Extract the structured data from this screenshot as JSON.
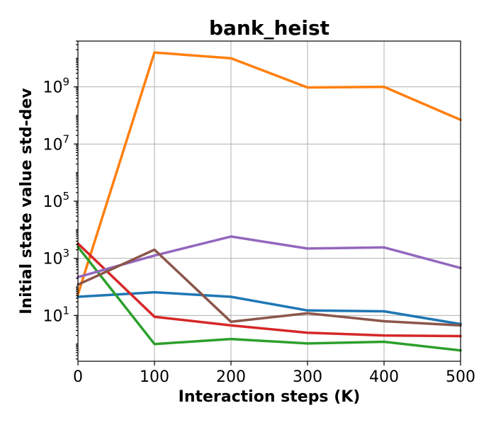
{
  "chart_data": {
    "type": "line",
    "title": "bank_heist",
    "xlabel": "Interaction steps (K)",
    "ylabel": "Initial state value std-dev",
    "x": [
      0,
      100,
      200,
      300,
      400,
      500
    ],
    "xlim": [
      0,
      500
    ],
    "xticks": [
      "0",
      "100",
      "200",
      "300",
      "400",
      "500"
    ],
    "yscale": "log",
    "ylim": [
      0.25,
      40000000000
    ],
    "yticks": [
      {
        "base": "10",
        "exp": "1",
        "value": 10
      },
      {
        "base": "10",
        "exp": "3",
        "value": 1000
      },
      {
        "base": "10",
        "exp": "5",
        "value": 100000
      },
      {
        "base": "10",
        "exp": "7",
        "value": 10000000
      },
      {
        "base": "10",
        "exp": "9",
        "value": 1000000000
      }
    ],
    "grid": true,
    "series": [
      {
        "color": "#1f77b4",
        "values": [
          45,
          65,
          45,
          15,
          14,
          5
        ]
      },
      {
        "color": "#ff7f0e",
        "values": [
          55,
          16000000000,
          10000000000,
          950000000,
          1000000000,
          70000000
        ]
      },
      {
        "color": "#2ca02c",
        "values": [
          2500,
          1,
          1.5,
          1.05,
          1.2,
          0.6
        ]
      },
      {
        "color": "#d62728",
        "values": [
          3300,
          9,
          4.5,
          2.5,
          2,
          1.9
        ]
      },
      {
        "color": "#9467bd",
        "values": [
          220,
          1250,
          5800,
          2200,
          2400,
          460
        ]
      },
      {
        "color": "#8c564b",
        "values": [
          120,
          2000,
          6,
          12,
          6.3,
          4.5
        ]
      }
    ]
  }
}
